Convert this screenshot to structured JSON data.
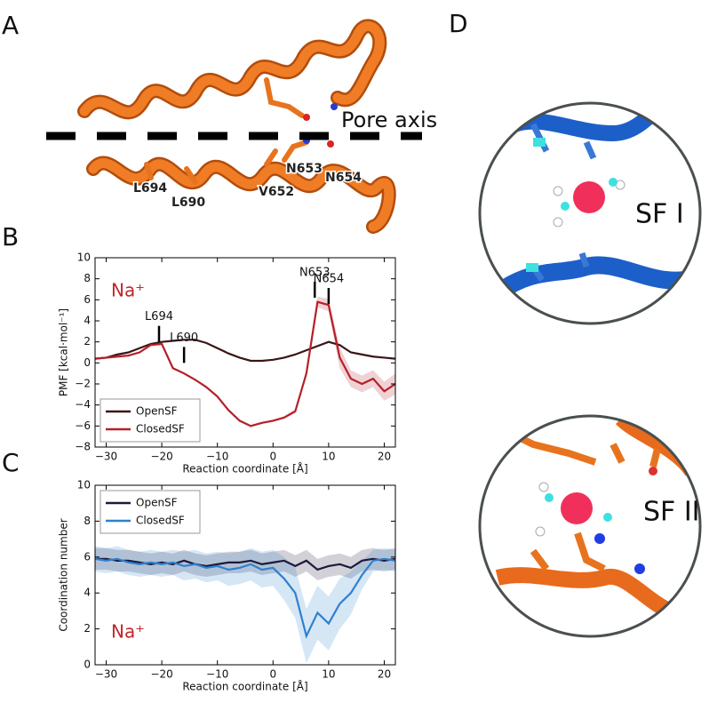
{
  "panel_labels": [
    "A",
    "B",
    "C",
    "D"
  ],
  "panel_a": {
    "axis_label": "Pore axis",
    "residues": [
      "L694",
      "L690",
      "V652",
      "N653",
      "N654"
    ]
  },
  "panel_d": {
    "labels": [
      "SF I",
      "SF II"
    ]
  },
  "chart_data": [
    {
      "type": "line",
      "xlabel": "Reaction coordinate [Å]",
      "ylabel": "PMF [kcal·mol⁻¹]",
      "annotation": "Na⁺",
      "x": [
        -32,
        -30,
        -28,
        -26,
        -24,
        -22,
        -20,
        -18,
        -16,
        -14,
        -12,
        -10,
        -8,
        -6,
        -4,
        -2,
        0,
        2,
        4,
        6,
        8,
        10,
        12,
        14,
        16,
        18,
        20,
        22
      ],
      "series": [
        {
          "name": "OpenSF",
          "color": "#3b1518",
          "values": [
            0.4,
            0.5,
            0.8,
            1.0,
            1.4,
            1.8,
            2.0,
            2.1,
            2.2,
            2.2,
            1.9,
            1.4,
            0.9,
            0.5,
            0.2,
            0.2,
            0.3,
            0.5,
            0.8,
            1.2,
            1.6,
            2.0,
            1.7,
            1.0,
            0.8,
            0.6,
            0.5,
            0.4
          ]
        },
        {
          "name": "ClosedSF",
          "color": "#b5202a",
          "values": [
            0.4,
            0.5,
            0.6,
            0.7,
            1.0,
            1.7,
            1.8,
            -0.5,
            -1.0,
            -1.6,
            -2.3,
            -3.2,
            -4.5,
            -5.5,
            -6.0,
            -5.7,
            -5.5,
            -5.2,
            -4.6,
            -1.0,
            5.8,
            5.5,
            0.5,
            -1.5,
            -2.0,
            -1.5,
            -2.7,
            -2.0
          ],
          "error": [
            0.1,
            0.1,
            0.1,
            0.1,
            0.1,
            0.1,
            0.1,
            0.1,
            0.1,
            0.1,
            0.1,
            0.1,
            0.1,
            0.1,
            0.1,
            0.1,
            0.1,
            0.1,
            0.2,
            0.3,
            0.5,
            0.6,
            1.0,
            0.8,
            0.8,
            0.8,
            0.9,
            1.0
          ]
        }
      ],
      "markers": [
        {
          "text": "L694",
          "x": -20.5,
          "y": 2.0
        },
        {
          "text": "L690",
          "x": -16,
          "y": 0.0
        },
        {
          "text": "N653",
          "x": 7.5,
          "y": 6.2
        },
        {
          "text": "N654",
          "x": 10,
          "y": 5.6
        }
      ],
      "xlim": [
        -32,
        22
      ],
      "xticks": [
        {
          "value": -30,
          "label": "−30"
        },
        {
          "value": -20,
          "label": "−20"
        },
        {
          "value": -10,
          "label": "−10"
        },
        0,
        10,
        20
      ],
      "ylim": [
        -8,
        10
      ],
      "yticks": [
        {
          "value": -8,
          "label": "−8"
        },
        {
          "value": -6,
          "label": "−6"
        },
        {
          "value": -4,
          "label": "−4"
        },
        {
          "value": -2,
          "label": "−2"
        },
        0,
        2,
        4,
        6,
        8,
        10
      ],
      "legend": "lower left"
    },
    {
      "type": "line",
      "xlabel": "Reaction coordinate [Å]",
      "ylabel": "Coordination number",
      "annotation": "Na⁺",
      "x": [
        -32,
        -30,
        -28,
        -26,
        -24,
        -22,
        -20,
        -18,
        -16,
        -14,
        -12,
        -10,
        -8,
        -6,
        -4,
        -2,
        0,
        2,
        4,
        6,
        8,
        10,
        12,
        14,
        16,
        18,
        20,
        22
      ],
      "series": [
        {
          "name": "OpenSF",
          "color": "#1c1a3c",
          "values": [
            5.9,
            5.9,
            5.8,
            5.8,
            5.7,
            5.6,
            5.7,
            5.6,
            5.8,
            5.6,
            5.5,
            5.6,
            5.7,
            5.7,
            5.8,
            5.6,
            5.7,
            5.8,
            5.5,
            5.8,
            5.3,
            5.5,
            5.6,
            5.4,
            5.8,
            5.9,
            5.8,
            5.9
          ],
          "error": [
            0.6,
            0.6,
            0.6,
            0.6,
            0.6,
            0.6,
            0.6,
            0.6,
            0.6,
            0.6,
            0.6,
            0.6,
            0.6,
            0.6,
            0.6,
            0.6,
            0.6,
            0.6,
            0.6,
            0.6,
            0.6,
            0.6,
            0.6,
            0.6,
            0.6,
            0.6,
            0.6,
            0.6
          ]
        },
        {
          "name": "ClosedSF",
          "color": "#2f80cf",
          "values": [
            5.9,
            5.8,
            5.9,
            5.7,
            5.6,
            5.7,
            5.6,
            5.7,
            5.5,
            5.6,
            5.4,
            5.5,
            5.3,
            5.4,
            5.6,
            5.3,
            5.4,
            4.8,
            4.0,
            1.6,
            2.9,
            2.3,
            3.4,
            4.0,
            5.0,
            5.8,
            5.9,
            5.8
          ],
          "error": [
            0.7,
            0.7,
            0.7,
            0.7,
            0.7,
            0.7,
            0.7,
            0.7,
            0.8,
            0.8,
            0.8,
            0.8,
            0.9,
            0.9,
            0.9,
            1.0,
            1.0,
            1.2,
            1.4,
            1.5,
            1.5,
            1.5,
            1.4,
            1.2,
            0.8,
            0.6,
            0.6,
            0.6
          ]
        }
      ],
      "xlim": [
        -32,
        22
      ],
      "xticks": [
        {
          "value": -30,
          "label": "−30"
        },
        {
          "value": -20,
          "label": "−20"
        },
        {
          "value": -10,
          "label": "−10"
        },
        0,
        10,
        20
      ],
      "ylim": [
        0,
        10
      ],
      "yticks": [
        0,
        2,
        4,
        6,
        8,
        10
      ],
      "legend": "upper left"
    }
  ]
}
